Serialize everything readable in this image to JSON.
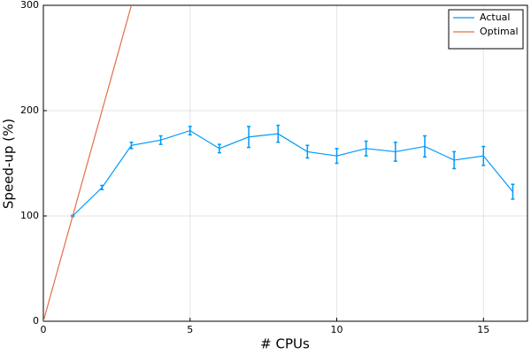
{
  "chart_data": {
    "type": "line",
    "xlabel": "# CPUs",
    "ylabel": "Speed-up (%)",
    "xlim": [
      0,
      16.5
    ],
    "ylim": [
      0,
      300
    ],
    "xticks": [
      0,
      5,
      10,
      15
    ],
    "yticks": [
      0,
      100,
      200,
      300
    ],
    "grid": true,
    "legend": "top-right",
    "series": [
      {
        "name": "Actual",
        "color": "#009af9",
        "x": [
          1,
          2,
          3,
          4,
          5,
          6,
          7,
          8,
          9,
          10,
          11,
          12,
          13,
          14,
          15,
          16
        ],
        "values": [
          100,
          127,
          167,
          172,
          181,
          164,
          175,
          178,
          161,
          157,
          164,
          161,
          166,
          153,
          157,
          123
        ],
        "errors": [
          0.5,
          2,
          3,
          4,
          4,
          4,
          10,
          8,
          6,
          7,
          7,
          9,
          10,
          8,
          9,
          7
        ]
      },
      {
        "name": "Optimal",
        "color": "#e26f46",
        "x": [
          0,
          1,
          2,
          3
        ],
        "values": [
          0,
          100,
          200,
          300
        ]
      }
    ]
  }
}
